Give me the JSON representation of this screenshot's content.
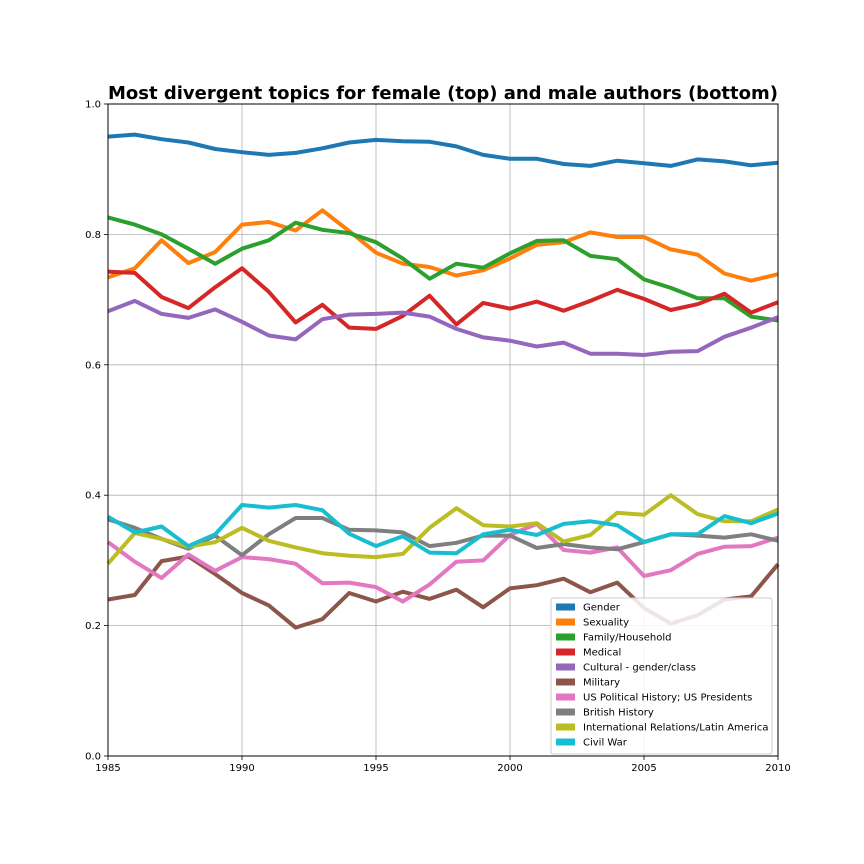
{
  "chart_data": {
    "type": "line",
    "title": "Most divergent topics for female (top) and male authors (bottom)",
    "xlabel": "",
    "ylabel": "",
    "xlim": [
      1985,
      2010
    ],
    "ylim": [
      0.0,
      1.0
    ],
    "xticks": [
      1985,
      1990,
      1995,
      2000,
      2005,
      2010
    ],
    "yticks": [
      0.0,
      0.2,
      0.4,
      0.6,
      0.8,
      1.0
    ],
    "xtick_labels": [
      "1985",
      "1990",
      "1995",
      "2000",
      "2005",
      "2010"
    ],
    "ytick_labels": [
      "0.0",
      "0.2",
      "0.4",
      "0.6",
      "0.8",
      "1.0"
    ],
    "grid": true,
    "legend_position": "lower-right",
    "x": [
      1985,
      1986,
      1987,
      1988,
      1989,
      1990,
      1991,
      1992,
      1993,
      1994,
      1995,
      1996,
      1997,
      1998,
      1999,
      2000,
      2001,
      2002,
      2003,
      2004,
      2005,
      2006,
      2007,
      2008,
      2009,
      2010
    ],
    "series": [
      {
        "name": "Gender",
        "color": "#1f77b4",
        "values": [
          0.95,
          0.953,
          0.946,
          0.941,
          0.931,
          0.926,
          0.922,
          0.925,
          0.932,
          0.941,
          0.945,
          0.943,
          0.942,
          0.935,
          0.922,
          0.916,
          0.916,
          0.908,
          0.905,
          0.913,
          0.909,
          0.905,
          0.915,
          0.912,
          0.906,
          0.91
        ]
      },
      {
        "name": "Sexuality",
        "color": "#ff7f0e",
        "values": [
          0.734,
          0.748,
          0.791,
          0.756,
          0.773,
          0.815,
          0.819,
          0.806,
          0.837,
          0.805,
          0.772,
          0.755,
          0.75,
          0.737,
          0.745,
          0.763,
          0.784,
          0.788,
          0.803,
          0.796,
          0.796,
          0.777,
          0.769,
          0.74,
          0.729,
          0.739
        ]
      },
      {
        "name": "Family/Household",
        "color": "#2ca02c",
        "values": [
          0.826,
          0.815,
          0.8,
          0.778,
          0.755,
          0.778,
          0.791,
          0.818,
          0.807,
          0.802,
          0.788,
          0.763,
          0.732,
          0.755,
          0.749,
          0.771,
          0.79,
          0.791,
          0.767,
          0.762,
          0.731,
          0.718,
          0.702,
          0.702,
          0.674,
          0.668
        ]
      },
      {
        "name": "Medical",
        "color": "#d62728",
        "values": [
          0.743,
          0.741,
          0.704,
          0.687,
          0.719,
          0.748,
          0.712,
          0.665,
          0.692,
          0.657,
          0.655,
          0.675,
          0.706,
          0.662,
          0.695,
          0.686,
          0.697,
          0.683,
          0.698,
          0.715,
          0.701,
          0.684,
          0.693,
          0.709,
          0.68,
          0.696
        ]
      },
      {
        "name": "Cultural - gender/class",
        "color": "#9467bd",
        "values": [
          0.682,
          0.698,
          0.678,
          0.672,
          0.685,
          0.666,
          0.645,
          0.639,
          0.67,
          0.677,
          0.678,
          0.68,
          0.674,
          0.655,
          0.642,
          0.637,
          0.628,
          0.634,
          0.617,
          0.617,
          0.615,
          0.62,
          0.621,
          0.643,
          0.657,
          0.673
        ]
      },
      {
        "name": "Military",
        "color": "#8c564b",
        "values": [
          0.24,
          0.247,
          0.299,
          0.306,
          0.279,
          0.25,
          0.231,
          0.197,
          0.21,
          0.25,
          0.237,
          0.252,
          0.241,
          0.255,
          0.228,
          0.257,
          0.262,
          0.272,
          0.251,
          0.266,
          0.227,
          0.203,
          0.216,
          0.24,
          0.245,
          0.294
        ]
      },
      {
        "name": "US Political History; US Presidents",
        "color": "#e377c2",
        "values": [
          0.328,
          0.298,
          0.273,
          0.309,
          0.284,
          0.305,
          0.302,
          0.295,
          0.265,
          0.266,
          0.259,
          0.237,
          0.263,
          0.298,
          0.3,
          0.339,
          0.356,
          0.316,
          0.312,
          0.32,
          0.276,
          0.285,
          0.31,
          0.321,
          0.322,
          0.335
        ]
      },
      {
        "name": "British History",
        "color": "#7f7f7f",
        "values": [
          0.363,
          0.35,
          0.333,
          0.318,
          0.338,
          0.308,
          0.34,
          0.365,
          0.365,
          0.347,
          0.346,
          0.343,
          0.322,
          0.327,
          0.338,
          0.338,
          0.319,
          0.325,
          0.32,
          0.317,
          0.328,
          0.34,
          0.338,
          0.335,
          0.34,
          0.33
        ]
      },
      {
        "name": "International Relations/Latin America",
        "color": "#bcbd22",
        "values": [
          0.295,
          0.342,
          0.333,
          0.321,
          0.328,
          0.35,
          0.33,
          0.32,
          0.311,
          0.307,
          0.305,
          0.31,
          0.35,
          0.38,
          0.354,
          0.352,
          0.357,
          0.329,
          0.339,
          0.373,
          0.37,
          0.4,
          0.371,
          0.36,
          0.36,
          0.378
        ]
      },
      {
        "name": "Civil War",
        "color": "#17becf",
        "values": [
          0.367,
          0.343,
          0.352,
          0.322,
          0.34,
          0.385,
          0.381,
          0.385,
          0.377,
          0.341,
          0.322,
          0.337,
          0.312,
          0.311,
          0.34,
          0.347,
          0.339,
          0.356,
          0.36,
          0.354,
          0.328,
          0.34,
          0.34,
          0.368,
          0.357,
          0.372
        ]
      }
    ]
  }
}
